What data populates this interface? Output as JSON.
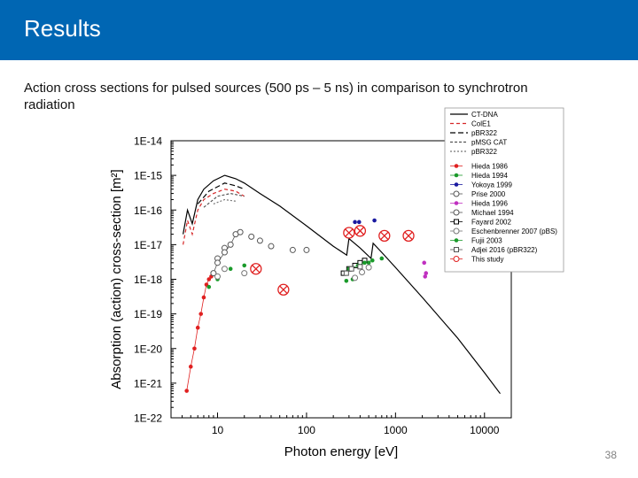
{
  "slide": {
    "title": "Results",
    "subtitle": "Action cross sections for pulsed sources (500 ps – 5 ns) in comparison to synchrotron radiation",
    "page_number": "38",
    "accent": "#0066b3"
  },
  "chart_data": {
    "type": "scatter",
    "xlabel": "Photon energy [eV]",
    "ylabel": "Absorption (action) cross-section [m²]",
    "x_scale": "log",
    "y_scale": "log",
    "xlim": [
      3,
      20000
    ],
    "ylim": [
      1e-22,
      1e-14
    ],
    "x_ticks": [
      {
        "value": 10,
        "label": "10"
      },
      {
        "value": 100,
        "label": "100"
      },
      {
        "value": 1000,
        "label": "1000"
      },
      {
        "value": 10000,
        "label": "10000"
      }
    ],
    "y_ticks": [
      {
        "value": 1e-14,
        "label": "1E-14"
      },
      {
        "value": 1e-15,
        "label": "1E-15"
      },
      {
        "value": 1e-16,
        "label": "1E-16"
      },
      {
        "value": 1e-17,
        "label": "1E-17"
      },
      {
        "value": 1e-18,
        "label": "1E-18"
      },
      {
        "value": 1e-19,
        "label": "1E-19"
      },
      {
        "value": 1e-20,
        "label": "1E-20"
      },
      {
        "value": 1e-21,
        "label": "1E-21"
      },
      {
        "value": 1e-22,
        "label": "1E-22"
      }
    ],
    "legend_position": "top-right",
    "lines": [
      {
        "name": "CT-DNA",
        "color": "#000000",
        "dash": "",
        "points": [
          [
            4.1,
            2e-17
          ],
          [
            4.6,
            1e-16
          ],
          [
            5.2,
            4e-17
          ],
          [
            6,
            2e-16
          ],
          [
            7,
            4e-16
          ],
          [
            9,
            7e-16
          ],
          [
            12,
            1e-15
          ],
          [
            16,
            8e-16
          ],
          [
            20,
            6e-16
          ],
          [
            30,
            3e-16
          ],
          [
            50,
            1.3e-16
          ],
          [
            100,
            3.5e-17
          ],
          [
            200,
            9e-18
          ],
          [
            283,
            5e-18
          ],
          [
            300,
            1.5e-17
          ],
          [
            400,
            8e-18
          ],
          [
            530,
            4e-18
          ],
          [
            560,
            1.1e-17
          ],
          [
            700,
            6e-18
          ],
          [
            1000,
            2.2e-18
          ],
          [
            2000,
            3e-19
          ],
          [
            5000,
            2e-20
          ],
          [
            10000,
            2e-21
          ],
          [
            15000,
            5e-22
          ]
        ]
      },
      {
        "name": "ColE1",
        "color": "#d62728",
        "dash": "4,3",
        "points": [
          [
            4.1,
            1e-17
          ],
          [
            4.6,
            5e-17
          ],
          [
            5.2,
            2e-17
          ],
          [
            6,
            1e-16
          ],
          [
            7,
            2e-16
          ],
          [
            9,
            3e-16
          ],
          [
            12,
            4e-16
          ],
          [
            16,
            3.5e-16
          ],
          [
            20,
            2.5e-16
          ]
        ]
      },
      {
        "name": "pBR322",
        "color": "#000000",
        "dash": "6,3",
        "points": [
          [
            6,
            1.5e-16
          ],
          [
            8,
            3.5e-16
          ],
          [
            12,
            6e-16
          ],
          [
            16,
            5e-16
          ],
          [
            20,
            4e-16
          ]
        ]
      },
      {
        "name": "pMSG CAT",
        "color": "#555555",
        "dash": "3,2",
        "points": [
          [
            7,
            1.2e-16
          ],
          [
            10,
            2.5e-16
          ],
          [
            14,
            3e-16
          ],
          [
            20,
            2.5e-16
          ]
        ]
      },
      {
        "name": "pBR322",
        "color": "#777777",
        "dash": "2,2",
        "points": [
          [
            9,
            1.5e-16
          ],
          [
            12,
            2e-16
          ],
          [
            16,
            1.8e-16
          ]
        ]
      }
    ],
    "markers": [
      {
        "name": "Hieda 1986",
        "color": "#e02020",
        "shape": "dot",
        "connect": true,
        "points": [
          [
            4.5,
            6e-22
          ],
          [
            5,
            3e-21
          ],
          [
            5.5,
            1e-20
          ],
          [
            6,
            4e-20
          ],
          [
            6.5,
            1e-19
          ],
          [
            7,
            3e-19
          ],
          [
            7.5,
            7e-19
          ],
          [
            8,
            1e-18
          ],
          [
            8.5,
            1.2e-18
          ]
        ]
      },
      {
        "name": "Hieda 1994",
        "color": "#1a9a2a",
        "shape": "dot",
        "connect": false,
        "points": [
          [
            8,
            6e-19
          ],
          [
            10,
            1e-18
          ],
          [
            14,
            2e-18
          ],
          [
            20,
            2.5e-18
          ],
          [
            280,
            9e-19
          ],
          [
            330,
            1e-18
          ],
          [
            500,
            3e-18
          ],
          [
            700,
            4e-18
          ]
        ]
      },
      {
        "name": "Yokoya 1999",
        "color": "#1a1aa0",
        "shape": "dot",
        "connect": false,
        "points": [
          [
            350,
            4.5e-17
          ],
          [
            390,
            4.5e-17
          ],
          [
            580,
            5e-17
          ]
        ]
      },
      {
        "name": "Prise 2000",
        "color": "#555555",
        "shape": "ring",
        "connect": false,
        "points": [
          [
            10,
            4e-18
          ],
          [
            12,
            8e-18
          ],
          [
            24,
            1.7e-17
          ],
          [
            30,
            1.3e-17
          ],
          [
            40,
            9e-18
          ],
          [
            70,
            7e-18
          ],
          [
            100,
            7e-18
          ]
        ]
      },
      {
        "name": "Hieda 1996",
        "color": "#c030c0",
        "shape": "dot",
        "connect": false,
        "points": [
          [
            2100,
            3e-18
          ],
          [
            2150,
            1.2e-18
          ],
          [
            2200,
            1.5e-18
          ]
        ]
      },
      {
        "name": "Michael 1994",
        "color": "#555555",
        "shape": "ring",
        "connect": true,
        "points": [
          [
            9,
            1.5e-18
          ],
          [
            10,
            3e-18
          ],
          [
            12,
            6e-18
          ],
          [
            14,
            1e-17
          ],
          [
            16,
            2e-17
          ],
          [
            18,
            2.3e-17
          ]
        ]
      },
      {
        "name": "Fayard 2002",
        "color": "#000000",
        "shape": "square",
        "connect": true,
        "points": [
          [
            260,
            1.5e-18
          ],
          [
            300,
            2e-18
          ],
          [
            350,
            2.5e-18
          ],
          [
            400,
            3e-18
          ],
          [
            450,
            3.5e-18
          ]
        ]
      },
      {
        "name": "Eschenbrenner 2007 (pBS)",
        "color": "#777777",
        "shape": "ring",
        "connect": false,
        "points": [
          [
            10,
            1.2e-18
          ],
          [
            12,
            2e-18
          ],
          [
            20,
            1.5e-18
          ],
          [
            350,
            1.1e-18
          ],
          [
            420,
            1.6e-18
          ],
          [
            500,
            2.2e-18
          ]
        ]
      },
      {
        "name": "Fujii 2003",
        "color": "#1a9a2a",
        "shape": "dot",
        "connect": true,
        "points": [
          [
            300,
            2e-18
          ],
          [
            380,
            2.5e-18
          ],
          [
            450,
            3e-18
          ],
          [
            550,
            3.5e-18
          ]
        ]
      },
      {
        "name": "Adjei 2016 (pBR322)",
        "color": "#555555",
        "shape": "square",
        "connect": false,
        "points": [
          [
            280,
            1.5e-18
          ],
          [
            320,
            2e-18
          ],
          [
            400,
            2.3e-18
          ]
        ]
      },
      {
        "name": "This study",
        "color": "#e02020",
        "shape": "crossring",
        "connect": false,
        "points": [
          [
            27,
            2e-18
          ],
          [
            55,
            5e-19
          ],
          [
            300,
            2.2e-17
          ],
          [
            400,
            2.5e-17
          ],
          [
            750,
            1.8e-17
          ],
          [
            1400,
            1.8e-17
          ]
        ]
      }
    ]
  }
}
